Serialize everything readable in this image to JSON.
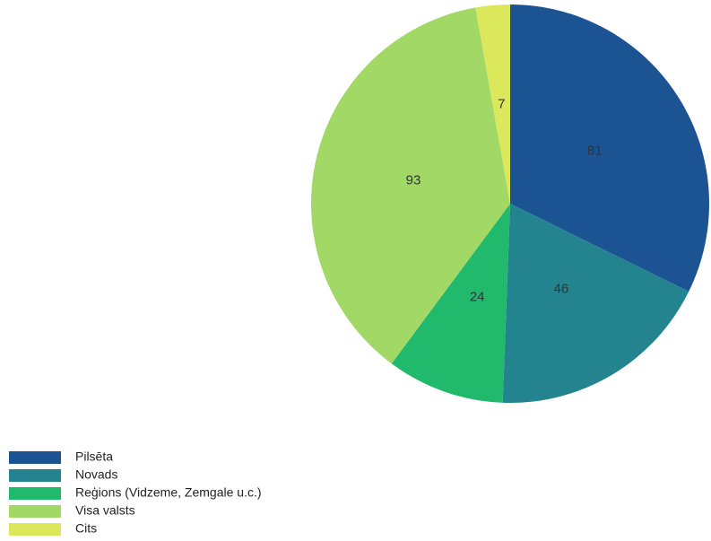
{
  "chart_data": {
    "type": "pie",
    "categories": [
      "Pilsēta",
      "Novads",
      "Reģions (Vidzeme, Zemgale u.c.)",
      "Visa valsts",
      "Cits"
    ],
    "values": [
      81,
      46,
      24,
      93,
      7
    ],
    "colors": [
      "#1c5393",
      "#238490",
      "#21ba6d",
      "#a2d865",
      "#dce85c"
    ],
    "legend": "bottom-left"
  }
}
